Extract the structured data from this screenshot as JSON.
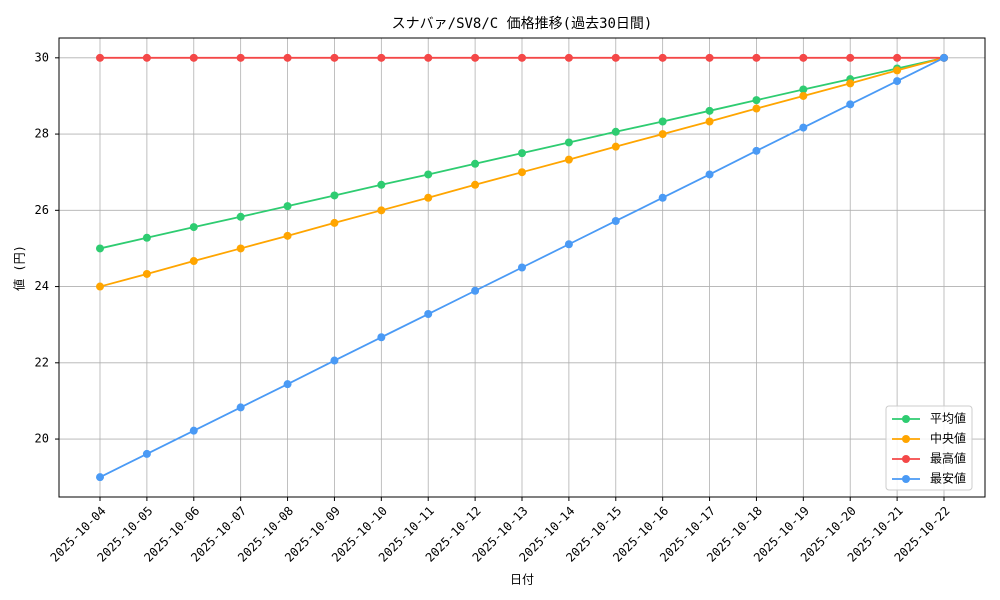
{
  "chart_data": {
    "type": "line",
    "title": "スナバァ/SV8/C 価格推移(過去30日間)",
    "x_label": "日付",
    "y_label": "値 (円)",
    "categories": [
      "2025-10-04",
      "2025-10-05",
      "2025-10-06",
      "2025-10-07",
      "2025-10-08",
      "2025-10-09",
      "2025-10-10",
      "2025-10-11",
      "2025-10-12",
      "2025-10-13",
      "2025-10-14",
      "2025-10-15",
      "2025-10-16",
      "2025-10-17",
      "2025-10-18",
      "2025-10-19",
      "2025-10-20",
      "2025-10-21",
      "2025-10-22"
    ],
    "series": [
      {
        "name": "平均値",
        "color": "#2ecc71",
        "values": [
          25,
          25.28,
          25.56,
          25.83,
          26.11,
          26.39,
          26.67,
          26.94,
          27.22,
          27.5,
          27.78,
          28.06,
          28.33,
          28.61,
          28.89,
          29.17,
          29.44,
          29.72,
          30
        ]
      },
      {
        "name": "中央値",
        "color": "#ffa500",
        "values": [
          24,
          24.33,
          24.67,
          25,
          25.33,
          25.67,
          26,
          26.33,
          26.67,
          27,
          27.33,
          27.67,
          28,
          28.33,
          28.67,
          29,
          29.33,
          29.67,
          30
        ]
      },
      {
        "name": "最高値",
        "color": "#f44848",
        "values": [
          30,
          30,
          30,
          30,
          30,
          30,
          30,
          30,
          30,
          30,
          30,
          30,
          30,
          30,
          30,
          30,
          30,
          30,
          30
        ]
      },
      {
        "name": "最安値",
        "color": "#4a9af5",
        "values": [
          19,
          19.61,
          20.22,
          20.83,
          21.44,
          22.06,
          22.67,
          23.28,
          23.89,
          24.5,
          25.11,
          25.72,
          26.33,
          26.94,
          27.56,
          28.17,
          28.78,
          29.39,
          30
        ]
      }
    ],
    "ylim": [
      18.48,
      30.52
    ],
    "yticks": [
      20,
      22,
      24,
      26,
      28,
      30
    ],
    "grid": true,
    "legend": "lower right"
  }
}
